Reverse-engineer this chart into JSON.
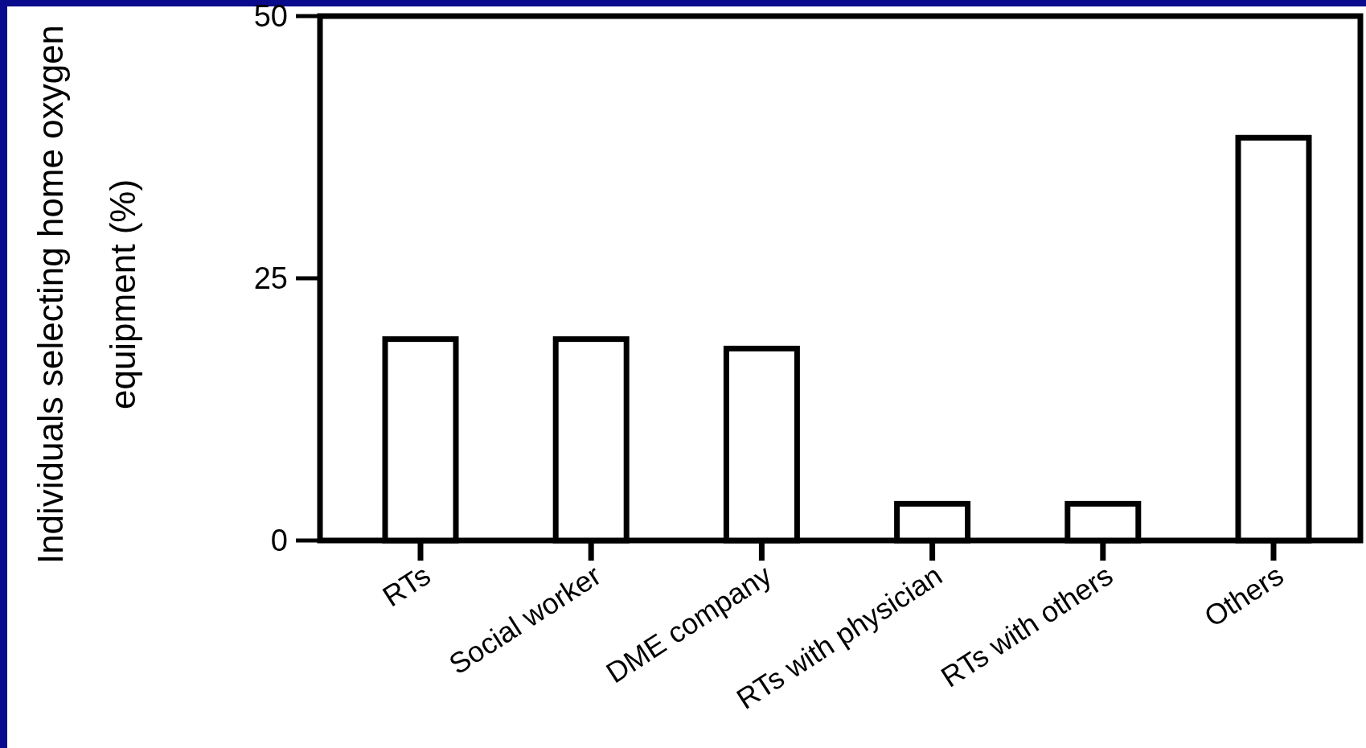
{
  "chart_data": {
    "type": "bar",
    "ylabel": "Individuals selecting home oxygen equipment (%)",
    "categories": [
      "RTs",
      "Social worker",
      "DME company",
      "RTs with physician",
      "RTs with others",
      "Others"
    ],
    "values": [
      19.2,
      19.2,
      18.3,
      3.5,
      3.5,
      38.4
    ],
    "color": "#000000",
    "ylim": [
      0,
      50
    ],
    "yticks": [
      0,
      25,
      50
    ],
    "grid": false
  }
}
